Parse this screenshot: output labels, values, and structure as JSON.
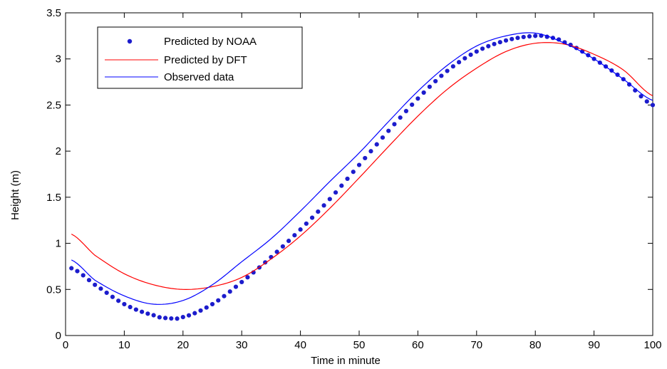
{
  "chart_data": {
    "type": "line",
    "xlabel": "Time in minute",
    "ylabel": "Height (m)",
    "xlim": [
      0,
      100
    ],
    "ylim": [
      0,
      3.5
    ],
    "xticks": [
      0,
      10,
      20,
      30,
      40,
      50,
      60,
      70,
      80,
      90,
      100
    ],
    "yticks": [
      0,
      0.5,
      1,
      1.5,
      2,
      2.5,
      3,
      3.5
    ],
    "xtick_labels": [
      "0",
      "10",
      "20",
      "30",
      "40",
      "50",
      "60",
      "70",
      "80",
      "90",
      "100"
    ],
    "ytick_labels": [
      "0",
      "0.5",
      "1",
      "1.5",
      "2",
      "2.5",
      "3",
      "3.5"
    ],
    "grid": false,
    "legend_position": "top-left",
    "series": [
      {
        "name": "Predicted by NOAA",
        "style": "dots",
        "color": "#1c1ccc",
        "x": [
          1,
          5,
          10,
          15,
          17,
          18,
          20,
          25,
          30,
          35,
          40,
          45,
          50,
          55,
          60,
          65,
          70,
          75,
          80,
          82,
          85,
          90,
          95,
          100
        ],
        "y": [
          0.73,
          0.55,
          0.34,
          0.22,
          0.19,
          0.185,
          0.2,
          0.34,
          0.58,
          0.85,
          1.15,
          1.48,
          1.85,
          2.22,
          2.57,
          2.87,
          3.08,
          3.2,
          3.25,
          3.24,
          3.18,
          3.0,
          2.78,
          2.5
        ]
      },
      {
        "name": "Predicted by DFT",
        "style": "line",
        "color": "#ff0000",
        "x": [
          1,
          5,
          10,
          15,
          20,
          25,
          30,
          35,
          40,
          45,
          50,
          55,
          60,
          65,
          70,
          75,
          80,
          85,
          90,
          95,
          100
        ],
        "y": [
          1.1,
          0.87,
          0.67,
          0.55,
          0.5,
          0.53,
          0.63,
          0.83,
          1.08,
          1.38,
          1.71,
          2.05,
          2.38,
          2.67,
          2.9,
          3.08,
          3.17,
          3.16,
          3.05,
          2.88,
          2.6
        ]
      },
      {
        "name": "Observed data",
        "style": "line",
        "color": "#0000ff",
        "x": [
          1,
          5,
          10,
          15,
          20,
          25,
          30,
          35,
          40,
          45,
          50,
          55,
          60,
          65,
          70,
          75,
          80,
          85,
          90,
          95,
          100
        ],
        "y": [
          0.82,
          0.6,
          0.43,
          0.34,
          0.38,
          0.55,
          0.8,
          1.05,
          1.35,
          1.67,
          1.98,
          2.32,
          2.65,
          2.93,
          3.14,
          3.25,
          3.28,
          3.17,
          3.0,
          2.78,
          2.55
        ]
      }
    ]
  }
}
